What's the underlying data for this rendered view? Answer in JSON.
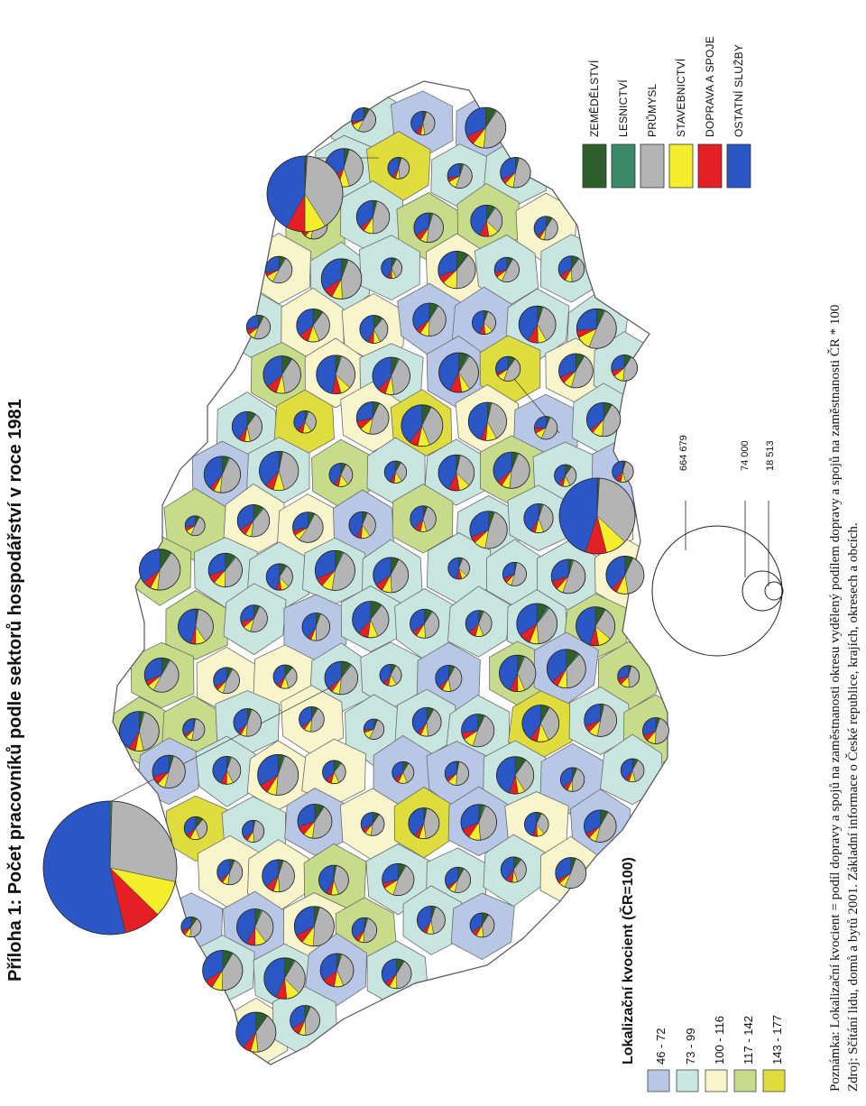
{
  "title": "Příloha 1: Počet pracovníků podle sektorů hospodářství v roce 1981",
  "legend": {
    "heading": "Lokalizační kvocient (ČR=100)",
    "classes": [
      {
        "label": "46 - 72",
        "color": "#b9c7e6"
      },
      {
        "label": "73 - 99",
        "color": "#c8e6df"
      },
      {
        "label": "100 - 116",
        "color": "#f8f5cd"
      },
      {
        "label": "117 - 142",
        "color": "#c7dc8a"
      },
      {
        "label": "143 - 177",
        "color": "#dedd3d"
      }
    ]
  },
  "sectors": [
    {
      "label": "ZEMĚDĚLSTVÍ",
      "color": "#2e5e2a"
    },
    {
      "label": "LESNICTVÍ",
      "color": "#3a8a6a"
    },
    {
      "label": "PRŮMYSL",
      "color": "#b4b4b4"
    },
    {
      "label": "STAVEBNICTVÍ",
      "color": "#f4ee2c"
    },
    {
      "label": "DOPRAVA A SPOJE",
      "color": "#e41f26"
    },
    {
      "label": "OSTATNÍ SLUŽBY",
      "color": "#2a56c6"
    }
  ],
  "size_legend": {
    "values": [
      "664 679",
      "74 000",
      "18 513"
    ]
  },
  "notes": {
    "line1": "Poznámka: Lokalizační kvocient = podíl dopravy a spojů na zaměstnanosti okresu vydělený podílem dopravy a spojů na zaměstnanosti ČR * 100",
    "line2": "Zdroj: Sčítání lidu, domů a bytů 2001. Základní informace o České republice, krajích, okresech a obcích."
  }
}
